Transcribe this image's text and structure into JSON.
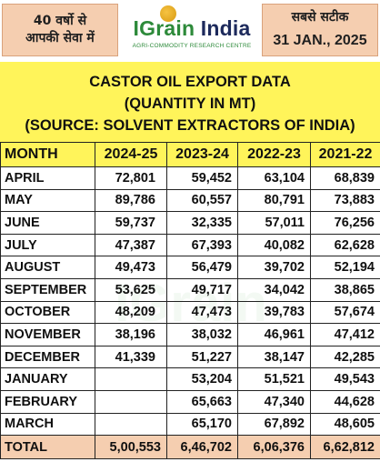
{
  "header": {
    "left_line1": "40 वर्षो से",
    "left_line2": "आपकी सेवा में",
    "logo_part1": "IGrain",
    "logo_part2": "India",
    "logo_tagline": "AGRI-COMMODITY RESEARCH CENTRE",
    "right_line1": "सबसे सटीक",
    "date": "31 JAN., 2025"
  },
  "title": {
    "line1": "CASTOR OIL EXPORT DATA",
    "line2": "(QUANTITY IN MT)",
    "line3": "(SOURCE: SOLVENT EXTRACTORS OF INDIA)"
  },
  "table": {
    "headers": [
      "MONTH",
      "2024-25",
      "2023-24",
      "2022-23",
      "2021-22"
    ],
    "rows": [
      [
        "APRIL",
        "72,801",
        "59,452",
        "63,104",
        "68,839"
      ],
      [
        "MAY",
        "89,786",
        "60,557",
        "80,791",
        "73,883"
      ],
      [
        "JUNE",
        "59,737",
        "32,335",
        "57,011",
        "76,256"
      ],
      [
        "JULY",
        "47,387",
        "67,393",
        "40,082",
        "62,628"
      ],
      [
        "AUGUST",
        "49,473",
        "56,479",
        "39,702",
        "52,194"
      ],
      [
        "SEPTEMBER",
        "53,625",
        "49,717",
        "34,042",
        "38,865"
      ],
      [
        "OCTOBER",
        "48,209",
        "47,473",
        "39,783",
        "57,674"
      ],
      [
        "NOVEMBER",
        "38,196",
        "38,032",
        "46,961",
        "47,412"
      ],
      [
        "DECEMBER",
        "41,339",
        "51,227",
        "38,147",
        "42,285"
      ],
      [
        "JANUARY",
        "",
        "53,204",
        "51,521",
        "49,543"
      ],
      [
        "FEBRUARY",
        "",
        "65,663",
        "47,340",
        "44,628"
      ],
      [
        "MARCH",
        "",
        "65,170",
        "67,892",
        "48,605"
      ]
    ],
    "total": [
      "TOTAL",
      "5,00,553",
      "6,46,702",
      "6,06,376",
      "6,62,812"
    ]
  },
  "colors": {
    "yellow": "#fff45a",
    "peach": "#f5ceb0",
    "logo_green": "#2d8a3a",
    "logo_navy": "#1d2a5c"
  }
}
